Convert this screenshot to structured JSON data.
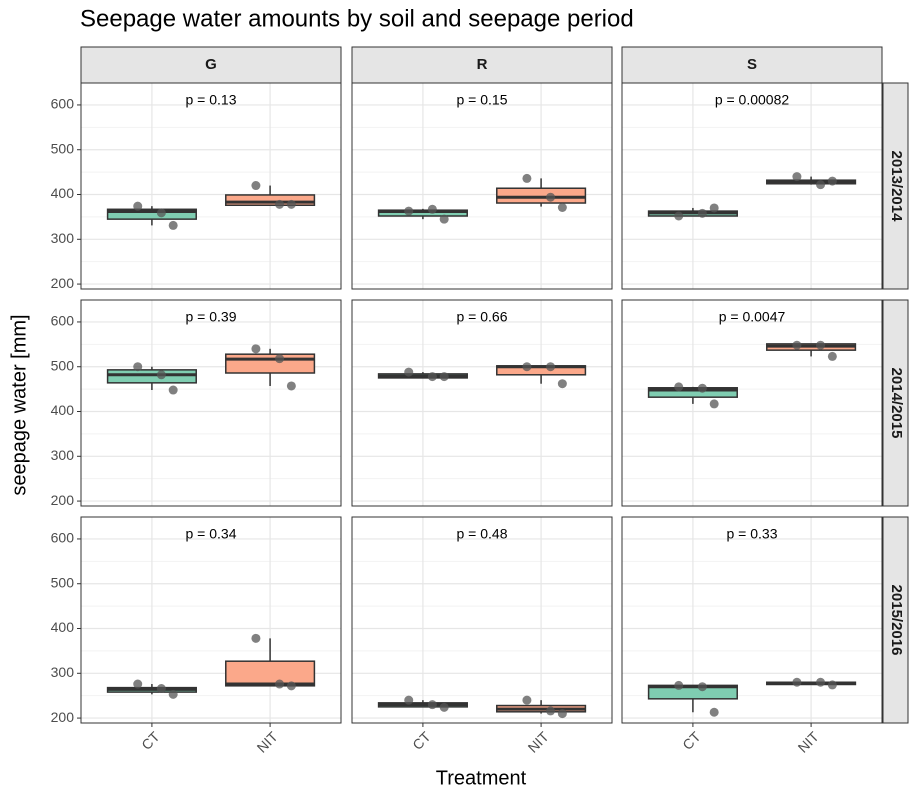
{
  "title": "Seepage water amounts by soil and seepage period",
  "x_label": "Treatment",
  "y_label": "seepage water [mm]",
  "columns": [
    "G",
    "R",
    "S"
  ],
  "rows": [
    "2013/2014",
    "2014/2015",
    "2015/2016"
  ],
  "categories": [
    "CT",
    "NIT"
  ],
  "colors": [
    "#7fcdb1",
    "#fba88a"
  ],
  "ylim": [
    189,
    649
  ],
  "yticks": [
    200,
    300,
    400,
    500,
    600
  ],
  "grid": true,
  "chart_data": [
    {
      "type": "box",
      "annotation": "p = 0.13",
      "boxes": [
        {
          "low": 331,
          "q1": 345,
          "median": 362,
          "q3": 367,
          "high": 374,
          "points": [
            374,
            359,
            331
          ]
        },
        {
          "low": 376,
          "q1": 376,
          "median": 383,
          "q3": 399,
          "high": 420,
          "points": [
            420,
            378,
            378
          ]
        }
      ]
    },
    {
      "type": "box",
      "annotation": "p = 0.15",
      "boxes": [
        {
          "low": 345,
          "q1": 352,
          "median": 362,
          "q3": 365,
          "high": 368,
          "points": [
            363,
            367,
            345
          ]
        },
        {
          "low": 373,
          "q1": 381,
          "median": 394,
          "q3": 414,
          "high": 436,
          "points": [
            436,
            394,
            371
          ]
        }
      ]
    },
    {
      "type": "box",
      "annotation": "p = 0.00082",
      "boxes": [
        {
          "low": 352,
          "q1": 352,
          "median": 359,
          "q3": 363,
          "high": 370,
          "points": [
            352,
            358,
            370
          ]
        },
        {
          "low": 422,
          "q1": 424,
          "median": 429,
          "q3": 432,
          "high": 440,
          "points": [
            440,
            422,
            430
          ]
        }
      ]
    },
    {
      "type": "box",
      "annotation": "p = 0.39",
      "boxes": [
        {
          "low": 448,
          "q1": 464,
          "median": 482,
          "q3": 493,
          "high": 500,
          "points": [
            500,
            482,
            448
          ]
        },
        {
          "low": 457,
          "q1": 486,
          "median": 517,
          "q3": 528,
          "high": 540,
          "points": [
            540,
            518,
            457
          ]
        }
      ]
    },
    {
      "type": "box",
      "annotation": "p = 0.66",
      "boxes": [
        {
          "low": 475,
          "q1": 475,
          "median": 479,
          "q3": 484,
          "high": 488,
          "points": [
            488,
            478,
            478
          ]
        },
        {
          "low": 462,
          "q1": 482,
          "median": 500,
          "q3": 502,
          "high": 502,
          "points": [
            500,
            500,
            462
          ]
        }
      ]
    },
    {
      "type": "box",
      "annotation": "p = 0.0047",
      "boxes": [
        {
          "low": 417,
          "q1": 432,
          "median": 448,
          "q3": 453,
          "high": 455,
          "points": [
            455,
            452,
            417
          ]
        },
        {
          "low": 523,
          "q1": 537,
          "median": 546,
          "q3": 551,
          "high": 551,
          "points": [
            548,
            548,
            523
          ]
        }
      ]
    },
    {
      "type": "box",
      "annotation": "p = 0.34",
      "boxes": [
        {
          "low": 253,
          "q1": 258,
          "median": 264,
          "q3": 268,
          "high": 276,
          "points": [
            276,
            266,
            253
          ]
        },
        {
          "low": 272,
          "q1": 272,
          "median": 276,
          "q3": 327,
          "high": 378,
          "points": [
            378,
            276,
            272
          ]
        }
      ]
    },
    {
      "type": "box",
      "annotation": "p = 0.48",
      "boxes": [
        {
          "low": 224,
          "q1": 225,
          "median": 230,
          "q3": 234,
          "high": 240,
          "points": [
            240,
            230,
            224
          ]
        },
        {
          "low": 210,
          "q1": 214,
          "median": 220,
          "q3": 228,
          "high": 240,
          "points": [
            240,
            216,
            210
          ]
        }
      ]
    },
    {
      "type": "box",
      "annotation": "p = 0.33",
      "boxes": [
        {
          "low": 213,
          "q1": 243,
          "median": 270,
          "q3": 273,
          "high": 273,
          "points": [
            273,
            270,
            213
          ]
        },
        {
          "low": 274,
          "q1": 275,
          "median": 278,
          "q3": 280,
          "high": 280,
          "points": [
            280,
            280,
            274
          ]
        }
      ]
    }
  ]
}
